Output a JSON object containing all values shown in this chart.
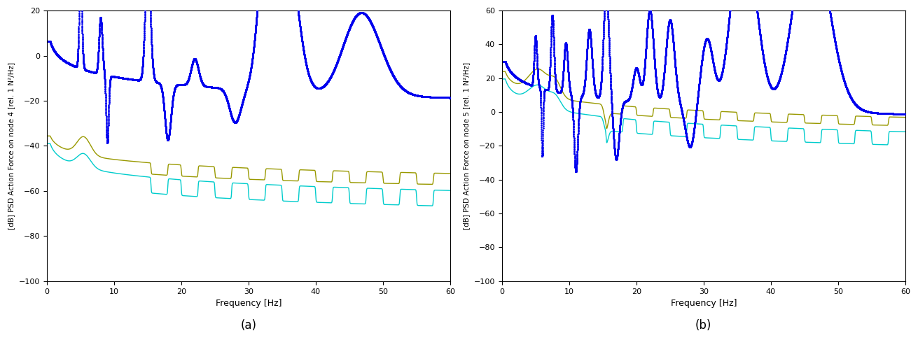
{
  "title_a": "(a)",
  "title_b": "(b)",
  "xlabel": "Frequency [Hz]",
  "ylabel_a": "[dB] PSD Action Force on node 4 [rel. 1 N²/Hz]",
  "ylabel_b": "[dB] PSD Action Force on node 5 [rel. 1 N²/Hz]",
  "xlim": [
    0,
    60
  ],
  "ylim_a": [
    -100,
    20
  ],
  "ylim_b": [
    -100,
    60
  ],
  "yticks_a": [
    20,
    0,
    -20,
    -40,
    -60,
    -80,
    -100
  ],
  "yticks_b": [
    60,
    40,
    20,
    0,
    -20,
    -40,
    -60,
    -80,
    -100
  ],
  "xticks": [
    0,
    10,
    20,
    30,
    40,
    50,
    60
  ],
  "color_blue": "#0000EE",
  "color_olive": "#999900",
  "color_cyan": "#00CCCC",
  "lw_blue": 1.8,
  "lw_thin": 1.0,
  "figsize": [
    13.11,
    4.83
  ],
  "dpi": 100
}
